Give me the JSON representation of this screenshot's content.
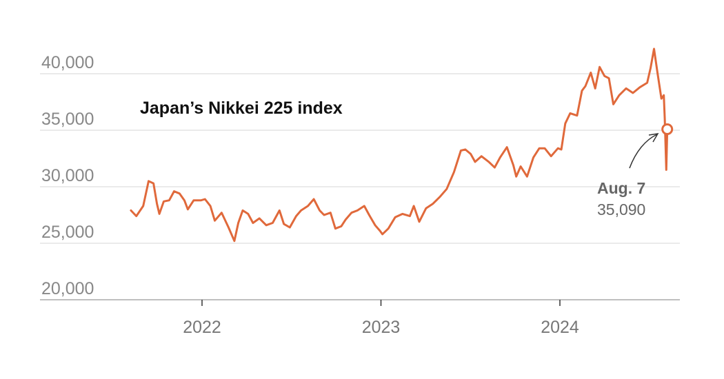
{
  "chart_data": {
    "type": "line",
    "title": "Japan’s Nikkei 225 index",
    "xlabel": "",
    "ylabel": "",
    "x_ticks": [
      "2022",
      "2023",
      "2024"
    ],
    "y_ticks": [
      "20,000",
      "25,000",
      "30,000",
      "35,000",
      "40,000"
    ],
    "ylim": [
      20000,
      40000
    ],
    "grid": "horizontal",
    "colors": {
      "line": "#e0693b",
      "grid": "#dddddd",
      "axis": "#aaaaaa"
    },
    "series": [
      {
        "x": [
          "2021-08-09",
          "2021-08-20",
          "2021-09-03",
          "2021-09-14",
          "2021-09-24",
          "2021-10-01",
          "2021-10-06",
          "2021-10-15",
          "2021-10-26",
          "2021-11-05",
          "2021-11-16",
          "2021-11-26",
          "2021-12-03",
          "2021-12-15",
          "2021-12-30",
          "2022-01-07",
          "2022-01-18",
          "2022-01-27",
          "2022-02-10",
          "2022-02-24",
          "2022-03-08",
          "2022-03-16",
          "2022-03-25",
          "2022-04-05",
          "2022-04-15",
          "2022-04-28",
          "2022-05-12",
          "2022-05-25",
          "2022-06-08",
          "2022-06-17",
          "2022-06-29",
          "2022-07-12",
          "2022-07-22",
          "2022-08-05",
          "2022-08-17",
          "2022-08-29",
          "2022-09-07",
          "2022-09-20",
          "2022-09-30",
          "2022-10-12",
          "2022-10-21",
          "2022-11-02",
          "2022-11-14",
          "2022-11-28",
          "2022-12-08",
          "2022-12-20",
          "2022-12-30",
          "2023-01-04",
          "2023-01-16",
          "2023-01-30",
          "2023-02-14",
          "2023-03-01",
          "2023-03-09",
          "2023-03-20",
          "2023-04-03",
          "2023-04-17",
          "2023-05-01",
          "2023-05-15",
          "2023-05-30",
          "2023-06-13",
          "2023-06-22",
          "2023-07-03",
          "2023-07-12",
          "2023-07-25",
          "2023-08-09",
          "2023-08-21",
          "2023-09-01",
          "2023-09-15",
          "2023-09-28",
          "2023-10-04",
          "2023-10-13",
          "2023-10-26",
          "2023-11-08",
          "2023-11-20",
          "2023-12-01",
          "2023-12-14",
          "2023-12-28",
          "2024-01-04",
          "2024-01-12",
          "2024-01-22",
          "2024-02-05",
          "2024-02-15",
          "2024-02-22",
          "2024-03-04",
          "2024-03-13",
          "2024-03-22",
          "2024-04-01",
          "2024-04-10",
          "2024-04-19",
          "2024-05-01",
          "2024-05-15",
          "2024-05-29",
          "2024-06-12",
          "2024-06-27",
          "2024-07-04",
          "2024-07-11",
          "2024-07-18",
          "2024-07-26",
          "2024-07-31",
          "2024-08-02",
          "2024-08-05",
          "2024-08-07"
        ],
        "values": [
          27900,
          27400,
          28300,
          30500,
          30300,
          28500,
          27600,
          28700,
          28800,
          29600,
          29400,
          28800,
          28000,
          28800,
          28800,
          28900,
          28300,
          27000,
          27700,
          26400,
          25200,
          26800,
          27900,
          27600,
          26800,
          27200,
          26600,
          26800,
          27900,
          26700,
          26400,
          27400,
          27900,
          28300,
          28900,
          27900,
          27500,
          27700,
          26300,
          26500,
          27100,
          27700,
          27900,
          28300,
          27500,
          26600,
          26100,
          25800,
          26300,
          27300,
          27600,
          27400,
          28300,
          26900,
          28100,
          28500,
          29100,
          29800,
          31300,
          33200,
          33300,
          32900,
          32200,
          32700,
          32200,
          31700,
          32600,
          33500,
          31900,
          30900,
          31800,
          30900,
          32600,
          33400,
          33400,
          32700,
          33400,
          33300,
          35600,
          36500,
          36300,
          38500,
          38900,
          40100,
          38700,
          40600,
          39800,
          39600,
          37300,
          38100,
          38700,
          38300,
          38800,
          39200,
          40500,
          42200,
          40100,
          37800,
          38100,
          36000,
          31500,
          35090
        ]
      }
    ],
    "annotation": {
      "date": "Aug. 7",
      "value": "35,090",
      "value_num": 35090
    }
  }
}
